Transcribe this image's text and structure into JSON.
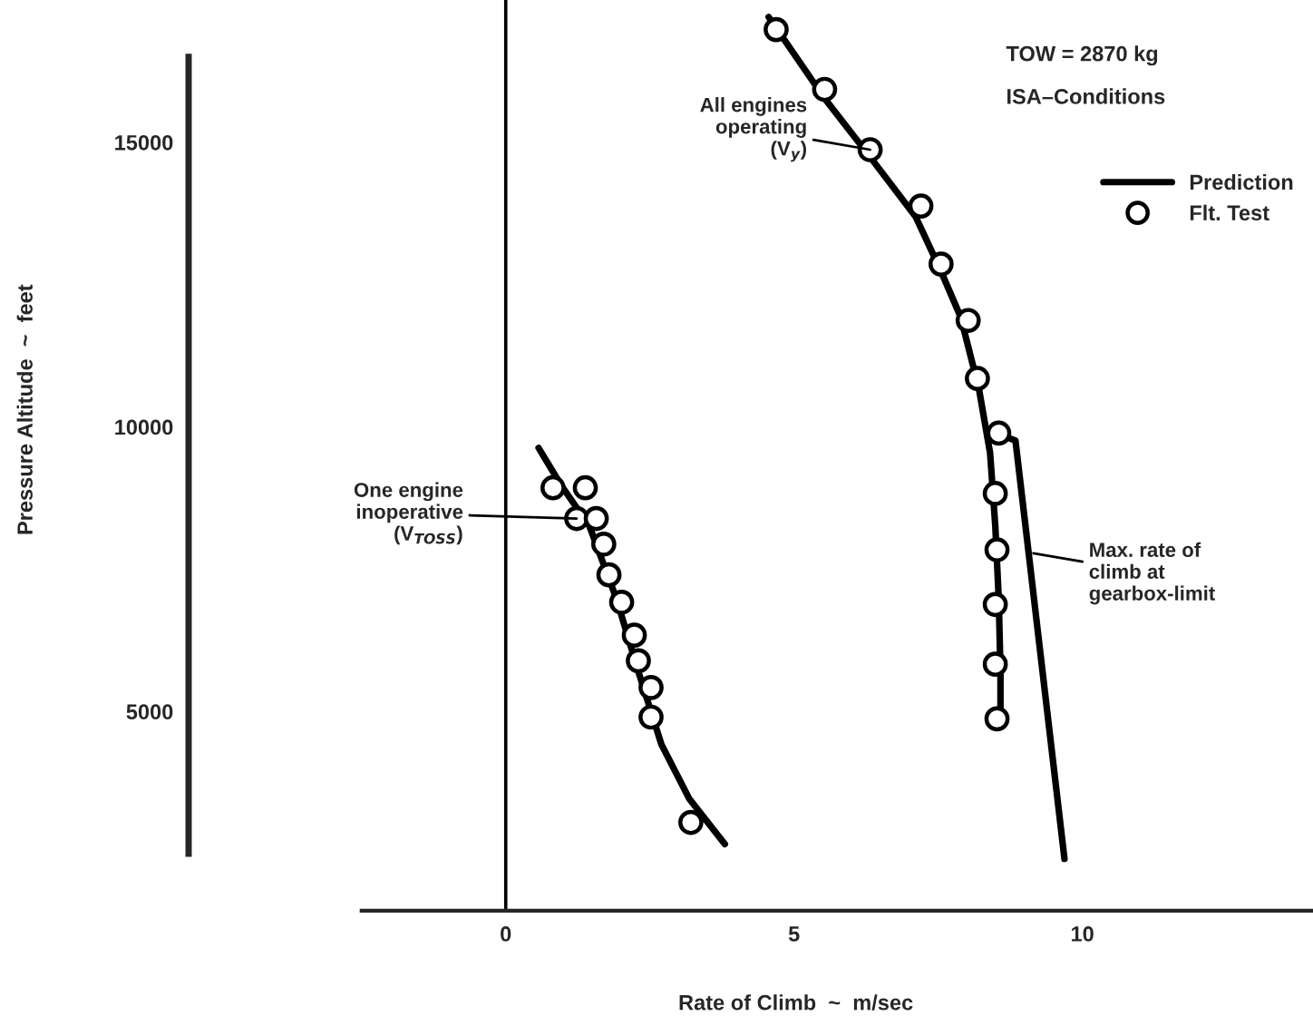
{
  "chart_data": {
    "type": "line",
    "xlabel": "Rate of Climb  ~  m/sec",
    "ylabel": "Pressure Altitude  ~  feet",
    "xlim": [
      -5.5,
      14
    ],
    "ylim": [
      1500,
      17500
    ],
    "xticks": [
      0,
      5,
      10
    ],
    "yticks": [
      5000,
      10000,
      15000
    ],
    "grid": false,
    "legend": "top right",
    "line_style": "solid",
    "ref_lines": [
      {
        "axis": "x",
        "value": 0,
        "color": "#000000"
      }
    ],
    "series": [
      {
        "name": "Prediction",
        "color": "#000000",
        "marker": "none",
        "x": [
          0.57,
          0.97,
          1.45,
          1.92,
          2.3,
          2.7,
          3.18,
          3.8
        ],
        "values": [
          9630,
          8960,
          8260,
          6980,
          5700,
          4420,
          3470,
          2670
        ]
      },
      {
        "color": "#000000",
        "marker": "none",
        "x": [
          4.56,
          5.53,
          6.32,
          7.11,
          7.55,
          7.89,
          8.21,
          8.4,
          8.49,
          8.55,
          8.58,
          8.58
        ],
        "values": [
          17200,
          15770,
          14740,
          13690,
          12730,
          11930,
          10650,
          9540,
          8260,
          6980,
          5700,
          4810
        ]
      },
      {
        "color": "#000000",
        "marker": "none",
        "x": [
          8.58,
          8.84,
          9.69
        ],
        "values": [
          9860,
          9760,
          2410
        ]
      },
      {
        "name": "Flt. Test",
        "type": "scatter",
        "color": "#000000",
        "marker": "circle",
        "x": [
          0.82,
          1.38,
          1.23,
          1.57,
          1.7,
          1.79,
          2.01,
          2.23,
          2.3,
          2.52,
          2.52,
          3.21
        ],
        "values": [
          8930,
          8930,
          8390,
          8390,
          7940,
          7400,
          6920,
          6340,
          5890,
          5420,
          4900,
          3050
        ]
      },
      {
        "type": "scatter",
        "color": "#000000",
        "marker": "circle",
        "x": [
          4.69,
          5.53,
          6.32,
          7.2,
          7.55,
          8.02,
          8.18,
          8.55,
          8.49,
          8.52,
          8.49,
          8.49,
          8.52
        ],
        "values": [
          16980,
          15930,
          14870,
          13880,
          12860,
          11870,
          10850,
          9890,
          8830,
          7840,
          6880,
          5830,
          4870
        ]
      }
    ],
    "annotations": [
      "TOW = 2870 kg",
      "ISA–Conditions",
      {
        "text": "All engines\noperating\n(V$_{y}$)",
        "x": 6.32,
        "y": 14870
      },
      {
        "text": "One engine\ninoperative\n(V$_{TOSS}$)",
        "x": 1.23,
        "y": 8390
      },
      {
        "text": "Max. rate of\nclimb at\ngearbox-limit",
        "x": 9.15,
        "y": 7780
      }
    ]
  }
}
